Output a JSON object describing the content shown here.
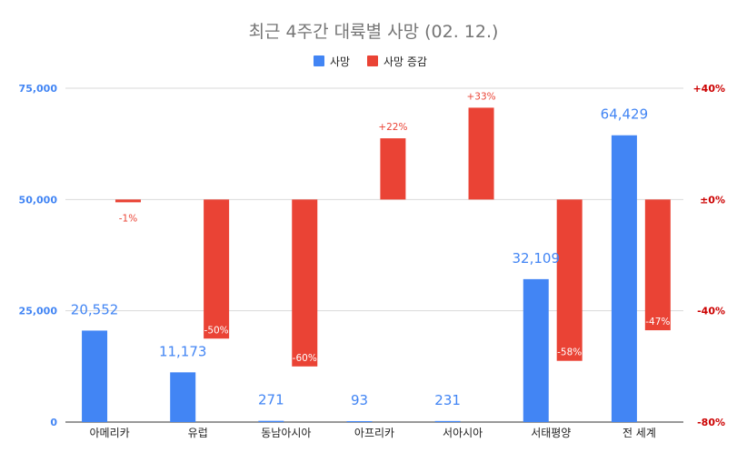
{
  "chart_data": {
    "type": "bar",
    "title": "최근 4주간 대륙별 사망 (02. 12.)",
    "categories": [
      "아메리카",
      "유럽",
      "동남아시아",
      "아프리카",
      "서아시아",
      "서태평양",
      "전 세계"
    ],
    "series": [
      {
        "name": "사망",
        "axis": "left",
        "color": "#4285F4",
        "values": [
          20552,
          11173,
          271,
          93,
          231,
          32109,
          64429
        ],
        "labels": [
          "20,552",
          "11,173",
          "271",
          "93",
          "231",
          "32,109",
          "64,429"
        ]
      },
      {
        "name": "사망 증감",
        "axis": "right",
        "color": "#EA4335",
        "values": [
          -1,
          -50,
          -60,
          22,
          33,
          -58,
          -47
        ],
        "labels": [
          "-1%",
          "-50%",
          "-60%",
          "+22%",
          "+33%",
          "-58%",
          "-47%"
        ]
      }
    ],
    "left_axis": {
      "min": 0,
      "max": 75000,
      "ticks": [
        0,
        25000,
        50000,
        75000
      ],
      "tick_labels": [
        "0",
        "25,000",
        "50,000",
        "75,000"
      ],
      "color": "#4285F4"
    },
    "right_axis": {
      "min": -80,
      "max": 40,
      "ticks": [
        -80,
        -40,
        0,
        40
      ],
      "tick_labels": [
        "-80%",
        "-40%",
        "±0%",
        "+40%"
      ],
      "color": "#CC0000"
    },
    "grid": true,
    "legend_position": "top-center"
  }
}
